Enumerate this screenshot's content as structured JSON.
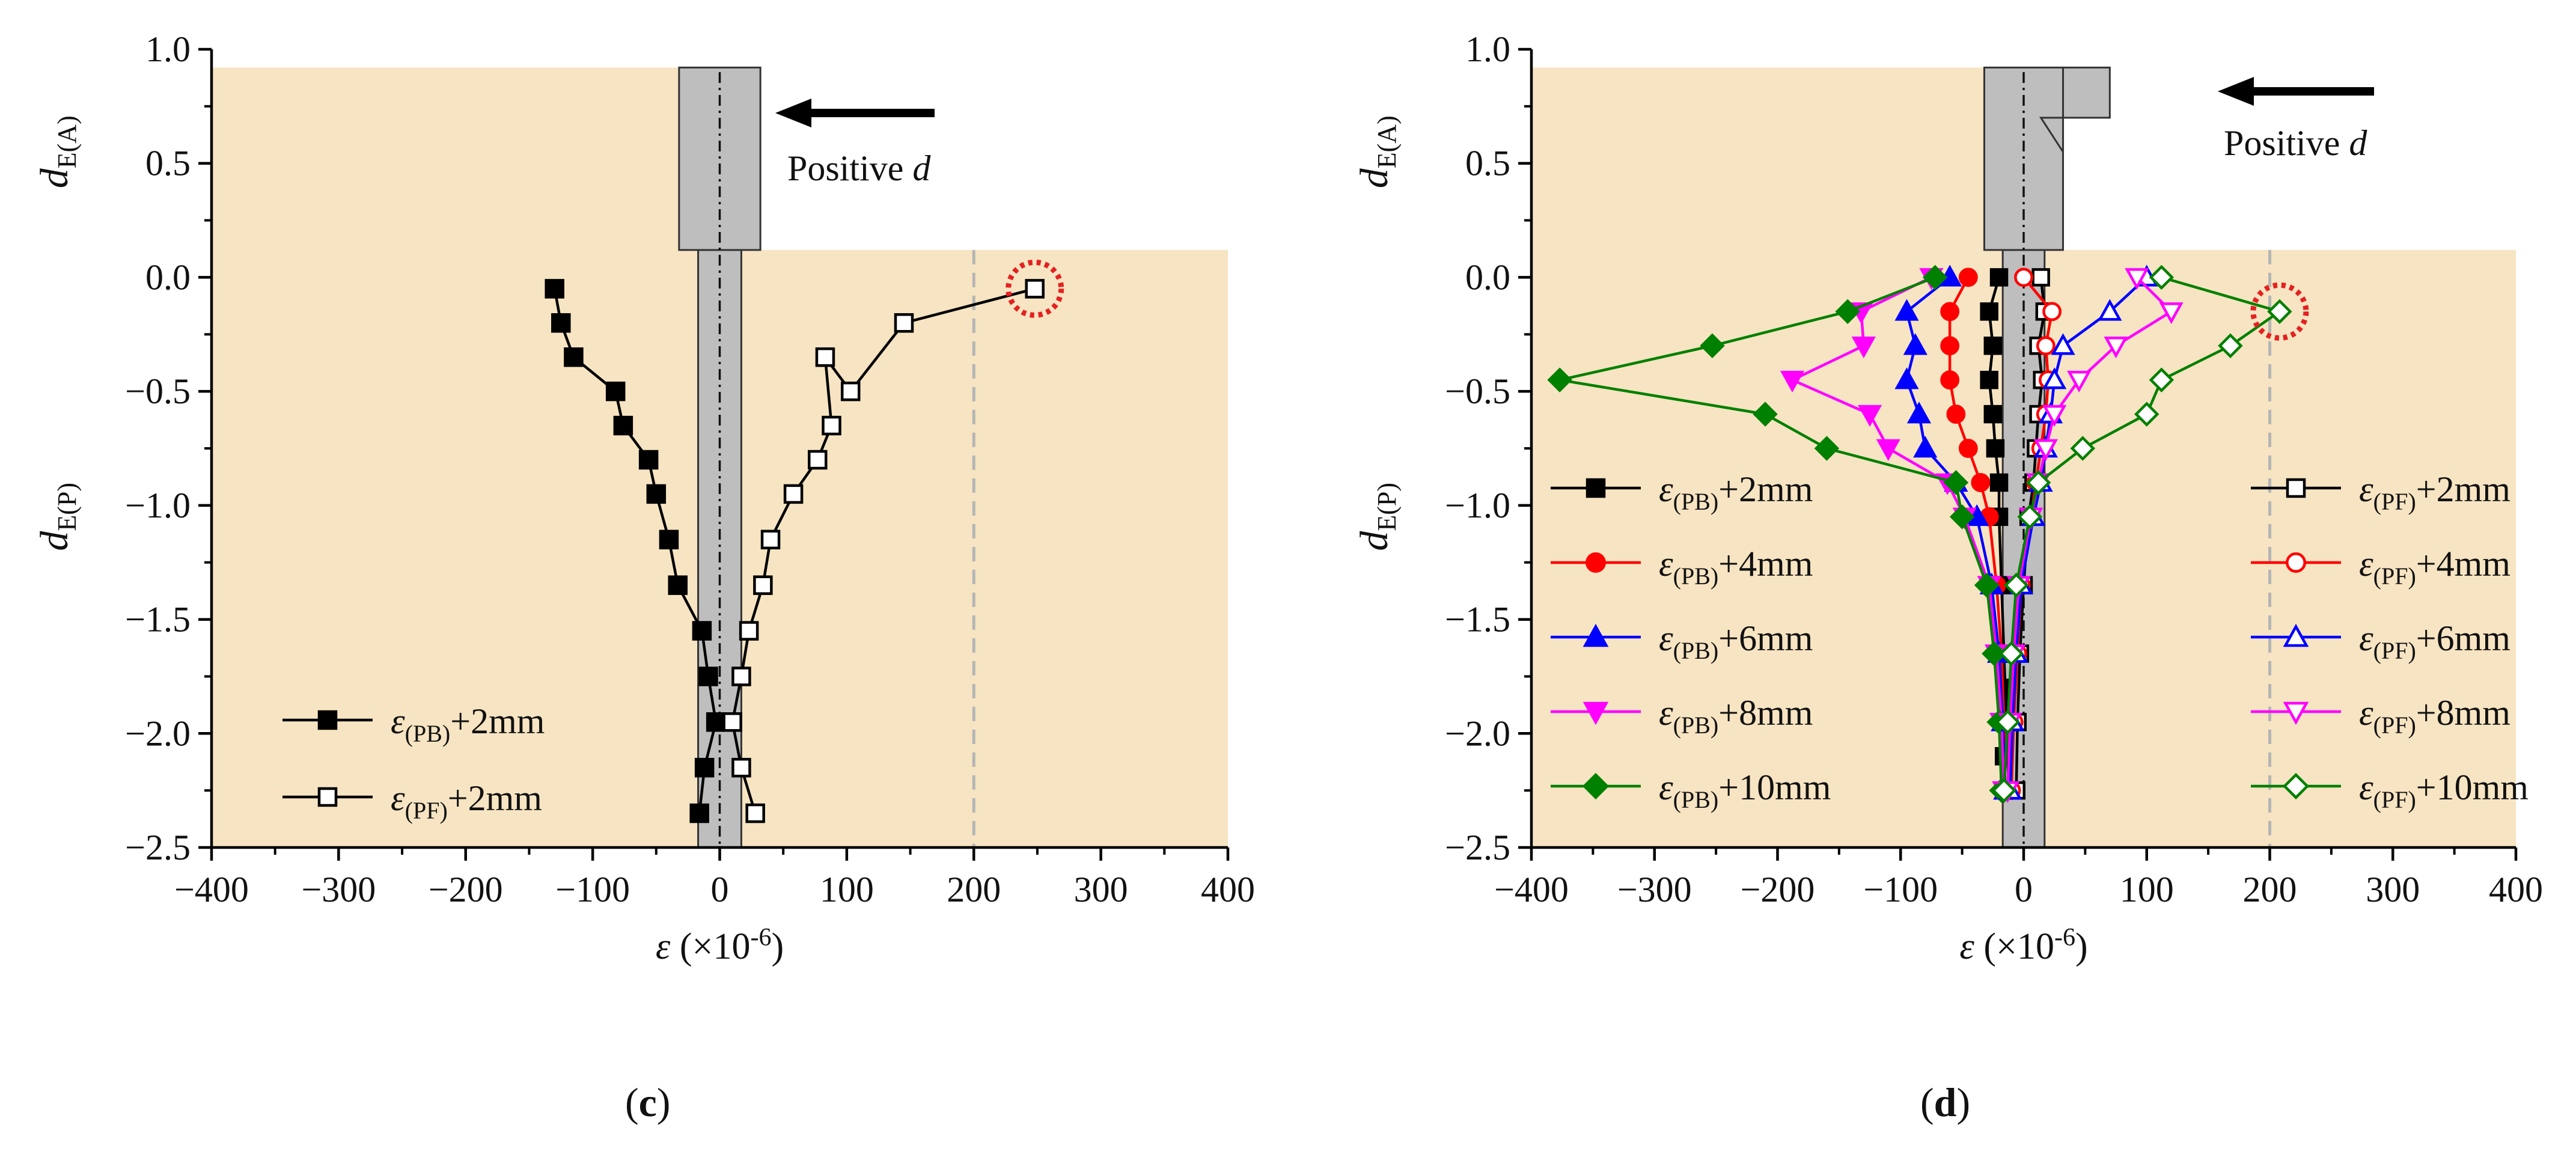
{
  "colors": {
    "soil": "#F7E4C2",
    "pile": "#BEBEBE",
    "threshold_line": "#B5B5B5",
    "highlight_circle": "#E52020",
    "series_colors": [
      "#000000",
      "#FF0000",
      "#0000FF",
      "#FF00FF",
      "#008000"
    ]
  },
  "chart_data": [
    {
      "type": "scatter",
      "panel_label": "c",
      "xlabel_symbol": "ε",
      "xlabel_rest": " (×10",
      "xlabel_exp": "-6",
      "xlabel_close": ")",
      "ylabel_top": {
        "main": "d",
        "sub": "E(A)"
      },
      "ylabel_bottom": {
        "main": "d",
        "sub": "E(P)"
      },
      "xlim": [
        -400,
        400
      ],
      "ylim": [
        -2.5,
        1.0
      ],
      "xticks": [
        -400,
        -300,
        -200,
        -100,
        0,
        100,
        200,
        300,
        400
      ],
      "yticks": [
        1.0,
        0.5,
        0.0,
        -0.5,
        -1.0,
        -1.5,
        -2.0,
        -2.5
      ],
      "xtick_labels": [
        "−400",
        "−300",
        "−200",
        "−100",
        "0",
        "100",
        "200",
        "300",
        "400"
      ],
      "ytick_labels": [
        "1.0",
        "0.5",
        "0.0",
        "−0.5",
        "−1.0",
        "−1.5",
        "−2.0",
        "−2.5"
      ],
      "threshold_x": 200,
      "highlight_point": [
        248,
        -0.05
      ],
      "annotation": {
        "text": "Positive ",
        "italic": "d"
      },
      "legend_placement": "bottom-left",
      "series": [
        {
          "name": "ε(PB)+2mm",
          "eps": "ε",
          "sub": "(PB)",
          "suffix": "+2mm",
          "marker": "square",
          "filled": true,
          "color_index": 0,
          "x": [
            -130,
            -125,
            -115,
            -82,
            -76,
            -56,
            -50,
            -40,
            -33,
            -14,
            -9,
            -3,
            -12,
            -16
          ],
          "y": [
            -0.05,
            -0.2,
            -0.35,
            -0.5,
            -0.65,
            -0.8,
            -0.95,
            -1.15,
            -1.35,
            -1.55,
            -1.75,
            -1.95,
            -2.15,
            -2.35
          ]
        },
        {
          "name": "ε(PF)+2mm",
          "eps": "ε",
          "sub": "(PF)",
          "suffix": "+2mm",
          "marker": "square",
          "filled": false,
          "color_index": 0,
          "x": [
            248,
            145,
            103,
            83,
            88,
            77,
            58,
            40,
            34,
            23,
            17,
            10,
            17,
            28
          ],
          "y": [
            -0.05,
            -0.2,
            -0.5,
            -0.35,
            -0.65,
            -0.8,
            -0.95,
            -1.15,
            -1.35,
            -1.55,
            -1.75,
            -1.95,
            -2.15,
            -2.35
          ]
        }
      ]
    },
    {
      "type": "scatter",
      "panel_label": "d",
      "xlabel_symbol": "ε",
      "xlabel_rest": " (×10",
      "xlabel_exp": "-6",
      "xlabel_close": ")",
      "ylabel_top": {
        "main": "d",
        "sub": "E(A)"
      },
      "ylabel_bottom": {
        "main": "d",
        "sub": "E(P)"
      },
      "xlim": [
        -400,
        400
      ],
      "ylim": [
        -2.5,
        1.0
      ],
      "xticks": [
        -400,
        -300,
        -200,
        -100,
        0,
        100,
        200,
        300,
        400
      ],
      "yticks": [
        1.0,
        0.5,
        0.0,
        -0.5,
        -1.0,
        -1.5,
        -2.0,
        -2.5
      ],
      "xtick_labels": [
        "−400",
        "−300",
        "−200",
        "−100",
        "0",
        "100",
        "200",
        "300",
        "400"
      ],
      "ytick_labels": [
        "1.0",
        "0.5",
        "0.0",
        "−0.5",
        "−1.0",
        "−1.5",
        "−2.0",
        "−2.5"
      ],
      "threshold_x": 200,
      "highlight_point": [
        208,
        -0.15
      ],
      "annotation": {
        "text": "Positive ",
        "italic": "d"
      },
      "legend_left_placement": "left",
      "legend_right_placement": "right",
      "series": [
        {
          "name": "ε(PB)+2mm",
          "eps": "ε",
          "sub": "(PB)",
          "suffix": "+2mm",
          "marker": "square",
          "filled": true,
          "color_index": 0,
          "x": [
            -20,
            -28,
            -25,
            -28,
            -25,
            -23,
            -20,
            -20,
            -18,
            -16,
            -14,
            -12,
            -14,
            -16
          ],
          "y": [
            0.0,
            -0.15,
            -0.3,
            -0.45,
            -0.6,
            -0.75,
            -0.9,
            -1.05,
            -1.35,
            -1.65,
            -1.95,
            -2.25,
            -1.8,
            -2.1
          ]
        },
        {
          "name": "ε(PB)+4mm",
          "eps": "ε",
          "sub": "(PB)",
          "suffix": "+4mm",
          "marker": "circle",
          "filled": true,
          "color_index": 1,
          "x": [
            -45,
            -60,
            -60,
            -60,
            -55,
            -45,
            -35,
            -28,
            -22,
            -18,
            -16,
            -15
          ],
          "y": [
            0.0,
            -0.15,
            -0.3,
            -0.45,
            -0.6,
            -0.75,
            -0.9,
            -1.05,
            -1.35,
            -1.65,
            -1.95,
            -2.25
          ]
        },
        {
          "name": "ε(PB)+6mm",
          "eps": "ε",
          "sub": "(PB)",
          "suffix": "+6mm",
          "marker": "triangle-up",
          "filled": true,
          "color_index": 2,
          "x": [
            -60,
            -95,
            -88,
            -95,
            -85,
            -80,
            -55,
            -38,
            -26,
            -20,
            -17,
            -15
          ],
          "y": [
            0.0,
            -0.15,
            -0.3,
            -0.45,
            -0.6,
            -0.75,
            -0.9,
            -1.05,
            -1.35,
            -1.65,
            -1.95,
            -2.25
          ]
        },
        {
          "name": "ε(PB)+8mm",
          "eps": "ε",
          "sub": "(PB)",
          "suffix": "+8mm",
          "marker": "triangle-down",
          "filled": true,
          "color_index": 3,
          "x": [
            -75,
            -132,
            -130,
            -188,
            -125,
            -110,
            -62,
            -48,
            -28,
            -22,
            -18,
            -16
          ],
          "y": [
            0.0,
            -0.15,
            -0.3,
            -0.45,
            -0.6,
            -0.75,
            -0.9,
            -1.05,
            -1.35,
            -1.65,
            -1.95,
            -2.25
          ]
        },
        {
          "name": "ε(PB)+10mm",
          "eps": "ε",
          "sub": "(PB)",
          "suffix": "+10mm",
          "marker": "diamond",
          "filled": true,
          "color_index": 4,
          "x": [
            -72,
            -143,
            -253,
            -377,
            -210,
            -160,
            -55,
            -50,
            -30,
            -24,
            -20,
            -18
          ],
          "y": [
            0.0,
            -0.15,
            -0.3,
            -0.45,
            -0.6,
            -0.75,
            -0.9,
            -1.05,
            -1.35,
            -1.65,
            -1.95,
            -2.25
          ]
        },
        {
          "name": "ε(PF)+2mm",
          "eps": "ε",
          "sub": "(PF)",
          "suffix": "+2mm",
          "marker": "square",
          "filled": false,
          "color_index": 0,
          "x": [
            14,
            17,
            12,
            15,
            12,
            10,
            8,
            4,
            0,
            -3,
            -5,
            -6
          ],
          "y": [
            0.0,
            -0.15,
            -0.3,
            -0.45,
            -0.6,
            -0.75,
            -0.9,
            -1.05,
            -1.35,
            -1.65,
            -1.95,
            -2.25
          ]
        },
        {
          "name": "ε(PF)+4mm",
          "eps": "ε",
          "sub": "(PF)",
          "suffix": "+4mm",
          "marker": "circle",
          "filled": false,
          "color_index": 1,
          "x": [
            0,
            23,
            18,
            20,
            18,
            14,
            10,
            6,
            -2,
            -5,
            -8,
            -10
          ],
          "y": [
            0.0,
            -0.15,
            -0.3,
            -0.45,
            -0.6,
            -0.75,
            -0.9,
            -1.05,
            -1.35,
            -1.65,
            -1.95,
            -2.25
          ]
        },
        {
          "name": "ε(PF)+6mm",
          "eps": "ε",
          "sub": "(PF)",
          "suffix": "+6mm",
          "marker": "triangle-up",
          "filled": false,
          "color_index": 2,
          "x": [
            100,
            70,
            32,
            25,
            22,
            18,
            14,
            8,
            -2,
            -6,
            -9,
            -11
          ],
          "y": [
            0.0,
            -0.15,
            -0.3,
            -0.45,
            -0.6,
            -0.75,
            -0.9,
            -1.05,
            -1.35,
            -1.65,
            -1.95,
            -2.25
          ]
        },
        {
          "name": "ε(PF)+8mm",
          "eps": "ε",
          "sub": "(PF)",
          "suffix": "+8mm",
          "marker": "triangle-down",
          "filled": false,
          "color_index": 3,
          "x": [
            92,
            120,
            75,
            45,
            25,
            18,
            12,
            6,
            -4,
            -8,
            -11,
            -13
          ],
          "y": [
            0.0,
            -0.15,
            -0.3,
            -0.45,
            -0.6,
            -0.75,
            -0.9,
            -1.05,
            -1.35,
            -1.65,
            -1.95,
            -2.25
          ]
        },
        {
          "name": "ε(PF)+10mm",
          "eps": "ε",
          "sub": "(PF)",
          "suffix": "+10mm",
          "marker": "diamond",
          "filled": false,
          "color_index": 4,
          "x": [
            112,
            208,
            168,
            112,
            100,
            48,
            12,
            5,
            -6,
            -10,
            -13,
            -16
          ],
          "y": [
            0.0,
            -0.15,
            -0.3,
            -0.45,
            -0.6,
            -0.75,
            -0.9,
            -1.05,
            -1.35,
            -1.65,
            -1.95,
            -2.25
          ]
        }
      ],
      "legend_left": [
        0,
        1,
        2,
        3,
        4
      ],
      "legend_right": [
        5,
        6,
        7,
        8,
        9
      ]
    }
  ],
  "legend_c": [
    0,
    1
  ]
}
